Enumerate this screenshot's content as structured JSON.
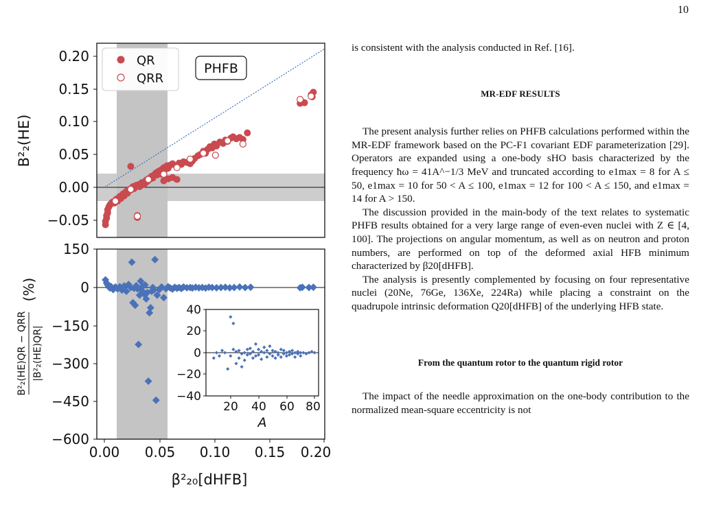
{
  "page": {
    "number": "10"
  },
  "figure": {
    "top_panel": {
      "ylabel": "B²₂(HE)",
      "yticks": [
        "0.20",
        "0.15",
        "0.10",
        "0.05",
        "0.00",
        "−0.05"
      ],
      "legend": [
        {
          "label": "QR",
          "marker": "filled-circle",
          "color": "#c94a4f"
        },
        {
          "label": "QRR",
          "marker": "open-circle",
          "color": "#c94a4f"
        }
      ],
      "box_label": "PHFB"
    },
    "bottom_panel": {
      "ylabel_numerator": "B²₂(HE)QR − QRR",
      "ylabel_denominator": "|B²₂(HE)QR|",
      "ylabel_unit": "(%)",
      "yticks": [
        "150",
        "0",
        "−150",
        "−300",
        "−450",
        "−600"
      ],
      "marker_color": "#4a72b8"
    },
    "x_axis": {
      "label": "β²₂₀[dHFB]",
      "ticks": [
        "0.00",
        "0.05",
        "0.10",
        "0.15",
        "0.20"
      ]
    },
    "inset": {
      "xlabel": "A",
      "xticks": [
        "20",
        "40",
        "60",
        "80"
      ],
      "yticks": [
        "40",
        "20",
        "0",
        "−20",
        "−40"
      ]
    },
    "qr_points": [
      [
        0.001,
        -0.057
      ],
      [
        0.001,
        -0.052
      ],
      [
        0.002,
        -0.047
      ],
      [
        0.002,
        -0.043
      ],
      [
        0.003,
        -0.039
      ],
      [
        0.003,
        -0.034
      ],
      [
        0.004,
        -0.03
      ],
      [
        0.005,
        -0.027
      ],
      [
        0.006,
        -0.025
      ],
      [
        0.007,
        -0.023
      ],
      [
        0.008,
        -0.022
      ],
      [
        0.009,
        -0.024
      ],
      [
        0.01,
        -0.02
      ],
      [
        0.011,
        -0.018
      ],
      [
        0.012,
        -0.021
      ],
      [
        0.013,
        -0.016
      ],
      [
        0.014,
        -0.014
      ],
      [
        0.015,
        -0.017
      ],
      [
        0.016,
        -0.012
      ],
      [
        0.017,
        -0.01
      ],
      [
        0.018,
        -0.013
      ],
      [
        0.019,
        -0.008
      ],
      [
        0.02,
        -0.006
      ],
      [
        0.021,
        -0.009
      ],
      [
        0.022,
        -0.005
      ],
      [
        0.023,
        -0.003
      ],
      [
        0.024,
        0.032
      ],
      [
        0.024,
        -0.004
      ],
      [
        0.025,
        -0.001
      ],
      [
        0.026,
        0.001
      ],
      [
        0.027,
        -0.002
      ],
      [
        0.028,
        0.002
      ],
      [
        0.029,
        0.003
      ],
      [
        0.03,
        -0.043
      ],
      [
        0.03,
        -0.046
      ],
      [
        0.031,
        0.004
      ],
      [
        0.032,
        0.001
      ],
      [
        0.033,
        0.005
      ],
      [
        0.034,
        0.007
      ],
      [
        0.035,
        0.004
      ],
      [
        0.036,
        0.008
      ],
      [
        0.037,
        0.006
      ],
      [
        0.038,
        0.011
      ],
      [
        0.039,
        0.009
      ],
      [
        0.04,
        0.013
      ],
      [
        0.041,
        0.012
      ],
      [
        0.042,
        0.015
      ],
      [
        0.043,
        0.017
      ],
      [
        0.044,
        0.014
      ],
      [
        0.045,
        0.018
      ],
      [
        0.046,
        0.02
      ],
      [
        0.047,
        0.022
      ],
      [
        0.048,
        0.019
      ],
      [
        0.049,
        0.024
      ],
      [
        0.05,
        0.022
      ],
      [
        0.051,
        0.026
      ],
      [
        0.052,
        0.02
      ],
      [
        0.053,
        0.028
      ],
      [
        0.054,
        0.03
      ],
      [
        0.055,
        0.027
      ],
      [
        0.056,
        0.031
      ],
      [
        0.057,
        0.033
      ],
      [
        0.058,
        0.029
      ],
      [
        0.06,
        0.034
      ],
      [
        0.062,
        0.036
      ],
      [
        0.065,
        0.033
      ],
      [
        0.068,
        0.037
      ],
      [
        0.07,
        0.035
      ],
      [
        0.072,
        0.039
      ],
      [
        0.075,
        0.038
      ],
      [
        0.078,
        0.036
      ],
      [
        0.08,
        0.04
      ],
      [
        0.082,
        0.044
      ],
      [
        0.085,
        0.048
      ],
      [
        0.087,
        0.05
      ],
      [
        0.09,
        0.055
      ],
      [
        0.092,
        0.052
      ],
      [
        0.094,
        0.058
      ],
      [
        0.096,
        0.062
      ],
      [
        0.098,
        0.06
      ],
      [
        0.1,
        0.066
      ],
      [
        0.102,
        0.063
      ],
      [
        0.105,
        0.069
      ],
      [
        0.108,
        0.067
      ],
      [
        0.11,
        0.072
      ],
      [
        0.112,
        0.07
      ],
      [
        0.115,
        0.075
      ],
      [
        0.117,
        0.077
      ],
      [
        0.12,
        0.074
      ],
      [
        0.123,
        0.076
      ],
      [
        0.126,
        0.073
      ],
      [
        0.13,
        0.083
      ],
      [
        0.178,
        0.128
      ],
      [
        0.179,
        0.131
      ],
      [
        0.182,
        0.129
      ],
      [
        0.188,
        0.141
      ],
      [
        0.19,
        0.145
      ],
      [
        0.189,
        0.138
      ],
      [
        0.054,
        0.01
      ],
      [
        0.058,
        0.013
      ],
      [
        0.062,
        0.015
      ],
      [
        0.066,
        0.012
      ]
    ],
    "qrr_points": [
      [
        0.01,
        -0.021
      ],
      [
        0.024,
        -0.003
      ],
      [
        0.03,
        -0.044
      ],
      [
        0.04,
        0.012
      ],
      [
        0.054,
        0.02
      ],
      [
        0.066,
        0.03
      ],
      [
        0.078,
        0.043
      ],
      [
        0.09,
        0.052
      ],
      [
        0.101,
        0.049
      ],
      [
        0.112,
        0.071
      ],
      [
        0.126,
        0.066
      ],
      [
        0.178,
        0.134
      ],
      [
        0.188,
        0.139
      ]
    ],
    "diff_points": [
      [
        0.001,
        30
      ],
      [
        0.002,
        18
      ],
      [
        0.003,
        10
      ],
      [
        0.004,
        5
      ],
      [
        0.005,
        -2
      ],
      [
        0.006,
        4
      ],
      [
        0.008,
        -8
      ],
      [
        0.01,
        2
      ],
      [
        0.012,
        -5
      ],
      [
        0.014,
        3
      ],
      [
        0.016,
        -10
      ],
      [
        0.018,
        6
      ],
      [
        0.02,
        -15
      ],
      [
        0.022,
        12
      ],
      [
        0.024,
        0
      ],
      [
        0.025,
        100
      ],
      [
        0.026,
        -60
      ],
      [
        0.027,
        -3
      ],
      [
        0.028,
        -70
      ],
      [
        0.029,
        7
      ],
      [
        0.03,
        -5
      ],
      [
        0.031,
        -225
      ],
      [
        0.032,
        -30
      ],
      [
        0.033,
        25
      ],
      [
        0.034,
        -12
      ],
      [
        0.035,
        5
      ],
      [
        0.036,
        -25
      ],
      [
        0.037,
        10
      ],
      [
        0.038,
        -45
      ],
      [
        0.039,
        -20
      ],
      [
        0.04,
        -370
      ],
      [
        0.041,
        -100
      ],
      [
        0.042,
        -80
      ],
      [
        0.043,
        -15
      ],
      [
        0.044,
        0
      ],
      [
        0.045,
        -10
      ],
      [
        0.046,
        110
      ],
      [
        0.047,
        -445
      ],
      [
        0.048,
        -30
      ],
      [
        0.05,
        -8
      ],
      [
        0.052,
        2
      ],
      [
        0.054,
        -40
      ],
      [
        0.056,
        -5
      ],
      [
        0.058,
        3
      ],
      [
        0.06,
        -2
      ],
      [
        0.062,
        -6
      ],
      [
        0.064,
        1
      ],
      [
        0.066,
        -3
      ],
      [
        0.068,
        0
      ],
      [
        0.07,
        -4
      ],
      [
        0.072,
        2
      ],
      [
        0.075,
        -1
      ],
      [
        0.078,
        0
      ],
      [
        0.08,
        -2
      ],
      [
        0.083,
        1
      ],
      [
        0.086,
        -1
      ],
      [
        0.089,
        0
      ],
      [
        0.092,
        -2
      ],
      [
        0.095,
        1
      ],
      [
        0.098,
        0
      ],
      [
        0.102,
        -1
      ],
      [
        0.106,
        0
      ],
      [
        0.11,
        1
      ],
      [
        0.114,
        -1
      ],
      [
        0.118,
        0
      ],
      [
        0.123,
        2
      ],
      [
        0.128,
        0
      ],
      [
        0.133,
        1
      ],
      [
        0.178,
        -1
      ],
      [
        0.18,
        1
      ],
      [
        0.186,
        0
      ],
      [
        0.19,
        1
      ]
    ],
    "inset_points": [
      [
        8,
        -5
      ],
      [
        10,
        0
      ],
      [
        12,
        -3
      ],
      [
        14,
        2
      ],
      [
        16,
        0
      ],
      [
        18,
        -15
      ],
      [
        20,
        33
      ],
      [
        20,
        -3
      ],
      [
        22,
        27
      ],
      [
        22,
        3
      ],
      [
        24,
        -10
      ],
      [
        24,
        1
      ],
      [
        26,
        -5
      ],
      [
        26,
        2
      ],
      [
        28,
        -13
      ],
      [
        28,
        -1
      ],
      [
        30,
        0
      ],
      [
        30,
        -7
      ],
      [
        32,
        3
      ],
      [
        32,
        -2
      ],
      [
        34,
        -1
      ],
      [
        34,
        4
      ],
      [
        36,
        -5
      ],
      [
        36,
        1
      ],
      [
        38,
        -3
      ],
      [
        38,
        8
      ],
      [
        40,
        -2
      ],
      [
        40,
        3
      ],
      [
        42,
        -6
      ],
      [
        42,
        1
      ],
      [
        44,
        0
      ],
      [
        44,
        5
      ],
      [
        46,
        -4
      ],
      [
        46,
        2
      ],
      [
        48,
        -1
      ],
      [
        48,
        6
      ],
      [
        50,
        -3
      ],
      [
        50,
        2
      ],
      [
        52,
        -5
      ],
      [
        52,
        1
      ],
      [
        54,
        0
      ],
      [
        54,
        -2
      ],
      [
        56,
        3
      ],
      [
        56,
        -4
      ],
      [
        58,
        -1
      ],
      [
        58,
        2
      ],
      [
        60,
        -3
      ],
      [
        60,
        0
      ],
      [
        62,
        1
      ],
      [
        62,
        -2
      ],
      [
        64,
        -1
      ],
      [
        64,
        2
      ],
      [
        66,
        -4
      ],
      [
        66,
        0
      ],
      [
        68,
        1
      ],
      [
        68,
        -1
      ],
      [
        70,
        0
      ],
      [
        70,
        -3
      ],
      [
        72,
        0
      ],
      [
        74,
        -1
      ],
      [
        76,
        0
      ],
      [
        78,
        1
      ],
      [
        80,
        0
      ]
    ]
  },
  "text": {
    "p_first": "is consistent with the analysis conducted in Ref. [16].",
    "section_heading": "MR-EDF RESULTS",
    "p1": "The present analysis further relies on PHFB calculations performed within the MR-EDF framework based on the PC-F1 covariant EDF parameterization [29]. Operators are expanded using a one-body sHO basis characterized by the frequency ħω = 41A^−1/3 MeV and truncated according to e1max = 8 for A ≤ 50, e1max = 10 for 50 < A ≤ 100, e1max = 12 for 100 < A ≤ 150, and e1max = 14 for A > 150.",
    "p2": "The discussion provided in the main-body of the text relates to systematic PHFB results obtained for a very large range of even-even nuclei with Z ∈ [4, 100]. The projections on angular momentum, as well as on neutron and proton numbers, are performed on top of the deformed axial HFB minimum characterized by β20[dHFB].",
    "p3": "The analysis is presently complemented by focusing on four representative nuclei (20Ne, 76Ge, 136Xe, 224Ra) while placing a constraint on the quadrupole intrinsic deformation Q20[dHFB] of the underlying HFB state.",
    "subsection_heading": "From the quantum rotor to the quantum rigid rotor",
    "p4": "The impact of the needle approximation on the one-body contribution to the normalized mean-square eccentricity is not"
  }
}
